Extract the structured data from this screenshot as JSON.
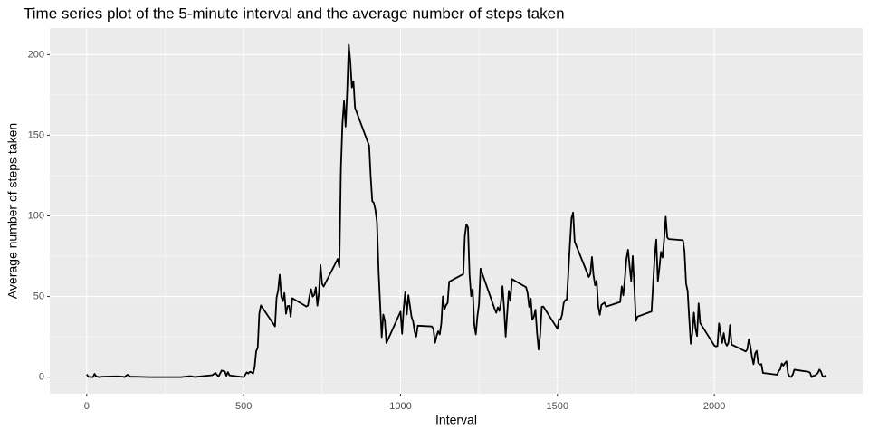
{
  "chart_data": {
    "type": "line",
    "title": "Time series plot of the 5-minute interval and the average number of steps taken",
    "x_label": "Interval",
    "y_label": "Average number of steps taken",
    "x": [
      0,
      5,
      10,
      20,
      25,
      30,
      40,
      50,
      100,
      115,
      120,
      130,
      140,
      150,
      200,
      230,
      300,
      330,
      345,
      400,
      410,
      420,
      430,
      440,
      445,
      450,
      455,
      500,
      505,
      510,
      515,
      520,
      525,
      530,
      535,
      540,
      545,
      550,
      555,
      600,
      605,
      610,
      615,
      620,
      625,
      630,
      635,
      640,
      645,
      650,
      655,
      700,
      705,
      710,
      715,
      720,
      725,
      730,
      735,
      740,
      745,
      750,
      755,
      800,
      805,
      810,
      815,
      820,
      825,
      830,
      835,
      840,
      845,
      850,
      855,
      900,
      905,
      910,
      915,
      920,
      925,
      930,
      935,
      940,
      945,
      950,
      955,
      1000,
      1005,
      1010,
      1015,
      1020,
      1025,
      1030,
      1035,
      1040,
      1045,
      1050,
      1055,
      1100,
      1105,
      1110,
      1115,
      1120,
      1125,
      1130,
      1135,
      1140,
      1145,
      1150,
      1155,
      1200,
      1205,
      1210,
      1215,
      1220,
      1225,
      1230,
      1235,
      1240,
      1245,
      1250,
      1255,
      1300,
      1305,
      1310,
      1315,
      1320,
      1325,
      1330,
      1335,
      1340,
      1345,
      1350,
      1355,
      1400,
      1405,
      1410,
      1415,
      1420,
      1425,
      1430,
      1435,
      1440,
      1445,
      1450,
      1455,
      1500,
      1505,
      1510,
      1515,
      1520,
      1525,
      1530,
      1535,
      1540,
      1545,
      1550,
      1555,
      1600,
      1605,
      1610,
      1615,
      1620,
      1625,
      1630,
      1635,
      1640,
      1645,
      1650,
      1655,
      1700,
      1705,
      1710,
      1715,
      1720,
      1725,
      1730,
      1735,
      1740,
      1745,
      1750,
      1755,
      1800,
      1805,
      1810,
      1815,
      1820,
      1825,
      1830,
      1835,
      1840,
      1845,
      1850,
      1855,
      1900,
      1905,
      1910,
      1915,
      1920,
      1925,
      1930,
      1935,
      1940,
      1945,
      1950,
      1955,
      2000,
      2005,
      2010,
      2015,
      2020,
      2025,
      2030,
      2035,
      2040,
      2045,
      2050,
      2055,
      2100,
      2105,
      2110,
      2115,
      2120,
      2125,
      2130,
      2135,
      2140,
      2145,
      2150,
      2155,
      2200,
      2205,
      2210,
      2215,
      2220,
      2225,
      2230,
      2235,
      2240,
      2245,
      2250,
      2255,
      2300,
      2305,
      2310,
      2315,
      2320,
      2325,
      2330,
      2335,
      2340,
      2345,
      2350,
      2355
    ],
    "series": [
      {
        "name": "steps",
        "color": "#000000",
        "values": [
          1.7,
          0.3,
          0.1,
          0,
          2,
          0.5,
          0,
          0.3,
          0.5,
          0.3,
          0,
          1.5,
          0.2,
          0.3,
          0,
          0,
          0,
          0.6,
          0.1,
          1.2,
          2.6,
          0.3,
          4.1,
          3.5,
          0.8,
          3.1,
          1.1,
          0,
          1.5,
          3,
          2.2,
          3.3,
          3,
          2.1,
          6.1,
          16,
          18.3,
          39.5,
          44.5,
          31.5,
          49.3,
          53.8,
          63.5,
          50,
          47.1,
          52.2,
          39.3,
          44,
          44.2,
          37.4,
          49,
          43.8,
          44.4,
          50.5,
          54.5,
          49.9,
          51,
          55.7,
          44.3,
          52.3,
          69.5,
          57.8,
          56.2,
          73.4,
          68.2,
          129.4,
          157.5,
          171.2,
          155.4,
          177.3,
          206.2,
          195.9,
          179.6,
          183.4,
          167,
          143.5,
          124,
          109.1,
          108.1,
          103.7,
          96,
          66.2,
          45.2,
          24.8,
          38.8,
          35,
          21.1,
          40.6,
          26.9,
          42.4,
          52.7,
          38.9,
          50.8,
          44.3,
          37.4,
          34.7,
          28.3,
          25.1,
          31.9,
          31.4,
          29.7,
          21.3,
          25.5,
          28.4,
          26.5,
          33.4,
          50,
          42,
          44.6,
          46,
          59.2,
          63.9,
          87.7,
          94.8,
          92.8,
          63.4,
          50.2,
          54.5,
          32.4,
          26.5,
          37.7,
          45.1,
          67.3,
          42.3,
          39.9,
          43.3,
          41,
          46.2,
          56.4,
          42.8,
          25.1,
          40,
          53.5,
          47.3,
          60.8,
          55.8,
          52,
          43.6,
          48.7,
          35.5,
          37.5,
          41.8,
          27.5,
          17.1,
          26.1,
          43.6,
          43.8,
          30,
          36.1,
          35.5,
          38.8,
          46,
          47.8,
          48.1,
          65.3,
          82.9,
          98.7,
          102.1,
          84,
          62.1,
          64.1,
          74.5,
          63.2,
          56.9,
          59.8,
          43.9,
          38.6,
          44.7,
          45.5,
          46.2,
          43.7,
          46.6,
          56.3,
          50.7,
          61.2,
          73.4,
          79,
          68.9,
          59.7,
          75.1,
          56.5,
          34.8,
          37.5,
          40.7,
          58,
          74.7,
          85.3,
          59.3,
          67.8,
          77.7,
          74.2,
          85.3,
          99.5,
          86.6,
          85.6,
          84.9,
          77.8,
          58,
          53.4,
          36.3,
          20.7,
          27.4,
          40,
          30.2,
          25.5,
          45.7,
          33.5,
          19.6,
          19,
          19.3,
          33.3,
          26.8,
          21.2,
          27.3,
          21.3,
          19.5,
          21.3,
          32.3,
          20.2,
          15.9,
          17.2,
          23.5,
          19.2,
          12.5,
          8,
          14.7,
          16.3,
          8.7,
          7.8,
          8.1,
          2.6,
          1.5,
          3.7,
          4.8,
          8.5,
          7.1,
          8.7,
          9.8,
          2.2,
          0.3,
          0.1,
          1.6,
          4.6,
          3.3,
          2.8,
          0,
          0.8,
          1,
          1.6,
          2.6,
          4.7,
          3.3,
          0.6,
          0.2,
          1.1
        ]
      }
    ],
    "xlim": [
      -117.75,
      2472.75
    ],
    "ylim": [
      -10.31,
      216.48
    ],
    "xticks": [
      0,
      500,
      1000,
      1500,
      2000
    ],
    "yticks": [
      0,
      50,
      100,
      150,
      200
    ],
    "grid": true
  }
}
